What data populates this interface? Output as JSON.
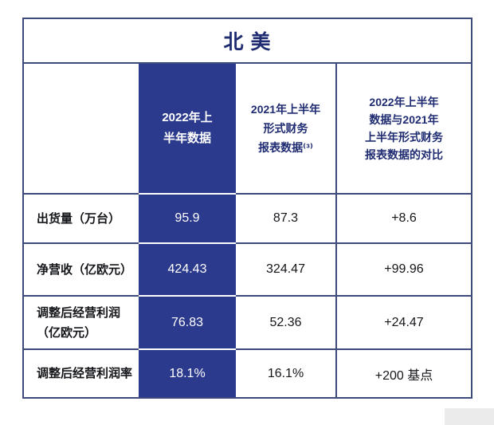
{
  "colors": {
    "highlight_blue": "#2b3a8c",
    "navy_text": "#202c72",
    "grid_border": "#3e4a7c",
    "body_text": "#15161a"
  },
  "table": {
    "title": "北 美",
    "header": {
      "col1": "",
      "col2": "2022年上\n半年数据",
      "col3": "2021年上半年\n形式财务\n报表数据⁽³⁾",
      "col4": "2022年上半年\n数据与2021年\n上半年形式财务\n报表数据的对比"
    },
    "rows": [
      {
        "label": "出货量（万台）",
        "v2022": "95.9",
        "v2021": "87.3",
        "delta": "+8.6"
      },
      {
        "label": "净营收（亿欧元）",
        "v2022": "424.43",
        "v2021": "324.47",
        "delta": "+99.96"
      },
      {
        "label": "调整后经营利润\n（亿欧元）",
        "v2022": "76.83",
        "v2021": "52.36",
        "delta": "+24.47"
      },
      {
        "label": "调整后经营利润率",
        "v2022": "18.1%",
        "v2021": "16.1%",
        "delta": "+200 基点"
      }
    ]
  },
  "chart_data": {
    "type": "table",
    "title": "北 美",
    "columns": [
      "",
      "2022年上半年数据",
      "2021年上半年形式财务报表数据(3)",
      "2022年上半年数据与2021年上半年形式财务报表数据的对比"
    ],
    "rows": [
      [
        "出货量（万台）",
        "95.9",
        "87.3",
        "+8.6"
      ],
      [
        "净营收（亿欧元）",
        "424.43",
        "324.47",
        "+99.96"
      ],
      [
        "调整后经营利润（亿欧元）",
        "76.83",
        "52.36",
        "+24.47"
      ],
      [
        "调整后经营利润率",
        "18.1%",
        "16.1%",
        "+200 基点"
      ]
    ],
    "highlight_column": "2022年上半年数据",
    "layout": "highlighted column rendered as dark indigo block with white separators; grid lines navy"
  }
}
